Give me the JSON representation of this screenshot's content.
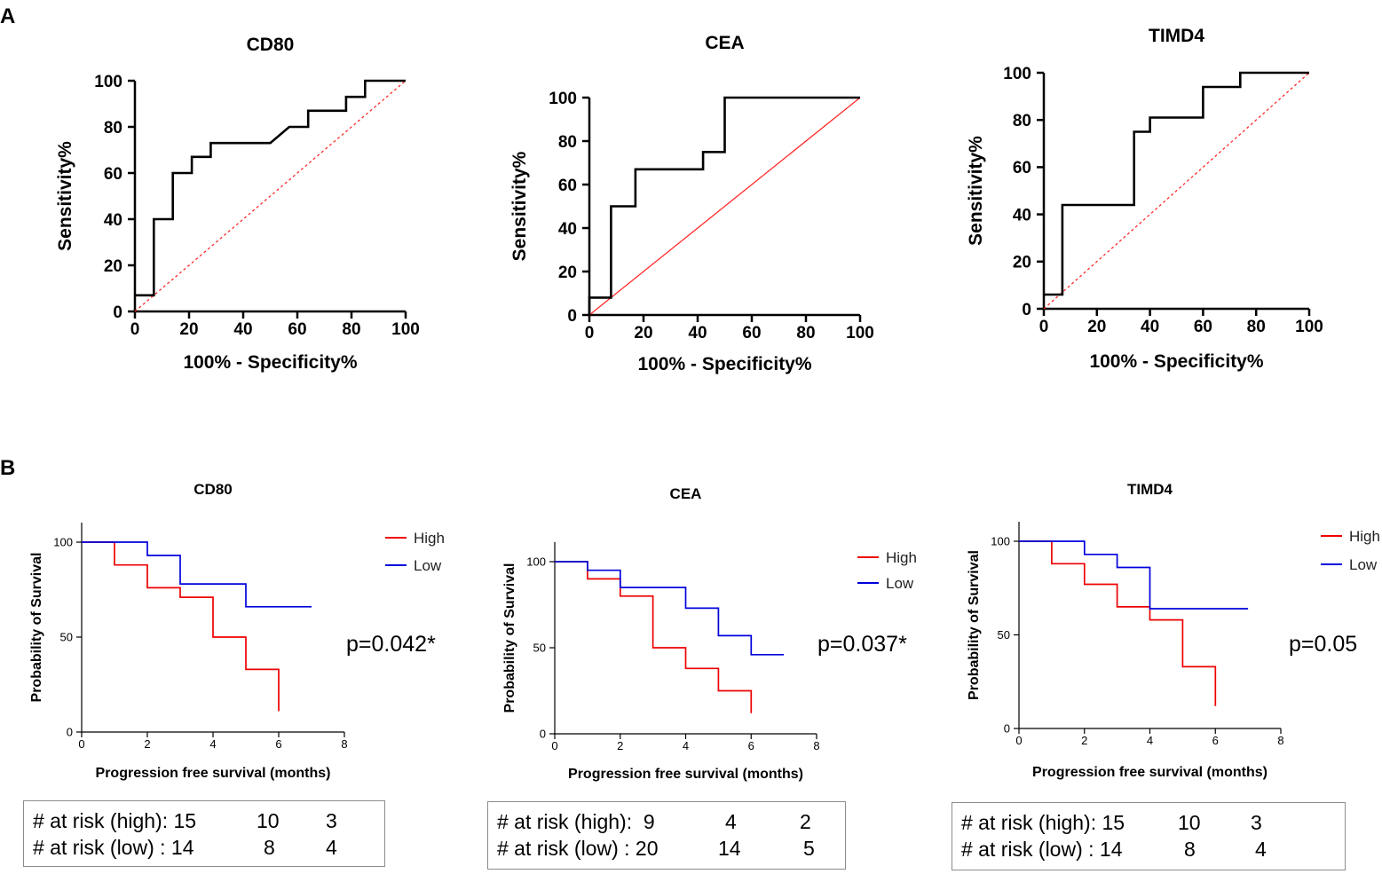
{
  "panel_labels": [
    "A",
    "B"
  ],
  "colors": {
    "roc_curve": "#000000",
    "diagonal": "#ff2a2a",
    "high": "#ee0000",
    "low": "#0000dd",
    "axis": "#000000",
    "risk_border": "#8c8c8c"
  },
  "chart_data": [
    {
      "type": "line",
      "panel": "A",
      "title": "CD80",
      "xlabel": "100% - Specificity%",
      "ylabel": "Sensitivity%",
      "xlim": [
        0,
        100
      ],
      "ylim": [
        0,
        100
      ],
      "xticks": [
        "0",
        "20",
        "40",
        "60",
        "80",
        "100"
      ],
      "yticks": [
        "0",
        "20",
        "40",
        "60",
        "80",
        "100"
      ],
      "diagonal_style": "dashed",
      "series": [
        {
          "name": "ROC",
          "step": true,
          "x": [
            0,
            7,
            7,
            14,
            14,
            21,
            21,
            28,
            28,
            50,
            57,
            64,
            64,
            78,
            78,
            85,
            85,
            100
          ],
          "y": [
            7,
            7,
            40,
            40,
            60,
            60,
            67,
            67,
            73,
            73,
            80,
            80,
            87,
            87,
            93,
            93,
            100,
            100
          ]
        }
      ]
    },
    {
      "type": "line",
      "panel": "A",
      "title": "CEA",
      "xlabel": "100% - Specificity%",
      "ylabel": "Sensitivity%",
      "xlim": [
        0,
        100
      ],
      "ylim": [
        0,
        100
      ],
      "xticks": [
        "0",
        "20",
        "40",
        "60",
        "80",
        "100"
      ],
      "yticks": [
        "0",
        "20",
        "40",
        "60",
        "80",
        "100"
      ],
      "diagonal_style": "solid",
      "series": [
        {
          "name": "ROC",
          "step": true,
          "x": [
            0,
            0,
            8,
            8,
            17,
            17,
            42,
            42,
            50,
            50,
            100
          ],
          "y": [
            0,
            8,
            8,
            50,
            50,
            67,
            67,
            75,
            75,
            100,
            100
          ]
        }
      ]
    },
    {
      "type": "line",
      "panel": "A",
      "title": "TIMD4",
      "xlabel": "100% - Specificity%",
      "ylabel": "Sensitivity%",
      "xlim": [
        0,
        100
      ],
      "ylim": [
        0,
        100
      ],
      "xticks": [
        "0",
        "20",
        "40",
        "60",
        "80",
        "100"
      ],
      "yticks": [
        "0",
        "20",
        "40",
        "60",
        "80",
        "100"
      ],
      "diagonal_style": "dashed",
      "series": [
        {
          "name": "ROC",
          "step": true,
          "x": [
            0,
            7,
            7,
            34,
            34,
            40,
            40,
            60,
            60,
            74,
            74,
            100
          ],
          "y": [
            6,
            6,
            44,
            44,
            75,
            75,
            81,
            81,
            94,
            94,
            100,
            100
          ]
        }
      ]
    },
    {
      "type": "line",
      "panel": "B",
      "title": "CD80",
      "xlabel": "Progression free survival (months)",
      "ylabel": "Probability of Survival",
      "xlim": [
        0,
        8
      ],
      "ylim": [
        0,
        100
      ],
      "xticks": [
        "0",
        "2",
        "4",
        "6",
        "8"
      ],
      "yticks": [
        "0",
        "50",
        "100"
      ],
      "p_value": "p=0.042*",
      "legend": [
        "High",
        "Low"
      ],
      "series": [
        {
          "name": "High",
          "step": true,
          "x": [
            0,
            1,
            1,
            2,
            2,
            3,
            3,
            4,
            4,
            5,
            5,
            6,
            6
          ],
          "y": [
            100,
            100,
            88,
            88,
            76,
            76,
            71,
            71,
            50,
            50,
            33,
            33,
            11
          ]
        },
        {
          "name": "Low",
          "step": true,
          "x": [
            0,
            2,
            2,
            3,
            3,
            5,
            5,
            7
          ],
          "y": [
            100,
            100,
            93,
            93,
            78,
            78,
            66,
            66
          ]
        }
      ],
      "risk_table": {
        "rows": [
          {
            "label": "# at risk (high): 15",
            "values": [
              "10",
              "3"
            ]
          },
          {
            "label": "# at risk (low) : 14",
            "values": [
              "8",
              "4"
            ]
          }
        ]
      }
    },
    {
      "type": "line",
      "panel": "B",
      "title": "CEA",
      "xlabel": "Progression free survival (months)",
      "ylabel": "Probability of Survival",
      "xlim": [
        0,
        8
      ],
      "ylim": [
        0,
        100
      ],
      "xticks": [
        "0",
        "2",
        "4",
        "6",
        "8"
      ],
      "yticks": [
        "0",
        "50",
        "100"
      ],
      "p_value": "p=0.037*",
      "legend": [
        "High",
        "Low"
      ],
      "series": [
        {
          "name": "High",
          "step": true,
          "x": [
            0,
            1,
            1,
            2,
            2,
            3,
            3,
            4,
            4,
            5,
            5,
            6,
            6
          ],
          "y": [
            100,
            100,
            90,
            90,
            80,
            80,
            50,
            50,
            38,
            38,
            25,
            25,
            12
          ]
        },
        {
          "name": "Low",
          "step": true,
          "x": [
            0,
            1,
            1,
            2,
            2,
            4,
            4,
            5,
            5,
            6,
            6,
            7
          ],
          "y": [
            100,
            100,
            95,
            95,
            85,
            85,
            73,
            73,
            57,
            57,
            46,
            46
          ]
        }
      ],
      "risk_table": {
        "rows": [
          {
            "label": "# at risk (high):  9",
            "values": [
              "4",
              "2"
            ]
          },
          {
            "label": "# at risk (low) : 20",
            "values": [
              "14",
              "5"
            ]
          }
        ]
      }
    },
    {
      "type": "line",
      "panel": "B",
      "title": "TIMD4",
      "xlabel": "Progression free survival (months)",
      "ylabel": "Probability of Survival",
      "xlim": [
        0,
        8
      ],
      "ylim": [
        0,
        100
      ],
      "xticks": [
        "0",
        "2",
        "4",
        "6",
        "8"
      ],
      "yticks": [
        "0",
        "50",
        "100"
      ],
      "p_value": "p=0.05",
      "legend": [
        "High",
        "Low"
      ],
      "series": [
        {
          "name": "High",
          "step": true,
          "x": [
            0,
            1,
            1,
            2,
            2,
            3,
            3,
            4,
            4,
            5,
            5,
            6,
            6
          ],
          "y": [
            100,
            100,
            88,
            88,
            77,
            77,
            65,
            65,
            58,
            58,
            33,
            33,
            12
          ]
        },
        {
          "name": "Low",
          "step": true,
          "x": [
            0,
            2,
            2,
            3,
            3,
            4,
            4,
            7
          ],
          "y": [
            100,
            100,
            93,
            93,
            86,
            86,
            64,
            64
          ]
        }
      ],
      "risk_table": {
        "rows": [
          {
            "label": "# at risk (high): 15",
            "values": [
              "10",
              "3"
            ]
          },
          {
            "label": "# at risk (low) : 14",
            "values": [
              "8",
              "4"
            ]
          }
        ]
      }
    }
  ]
}
